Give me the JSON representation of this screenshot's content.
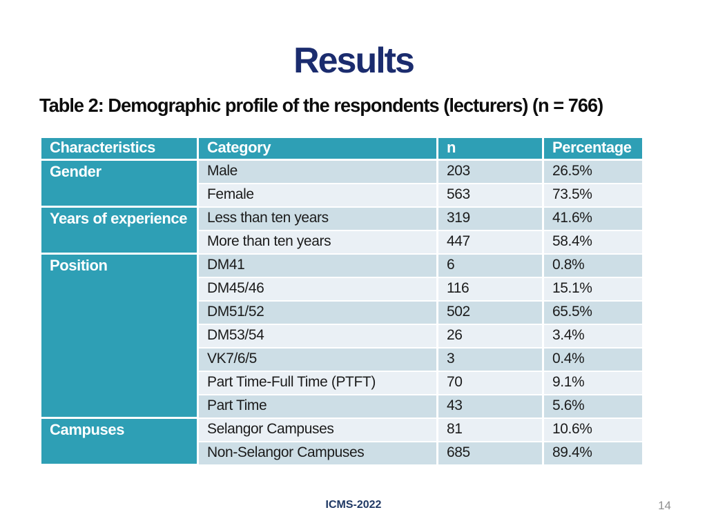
{
  "title": "Results",
  "subtitle": "Table 2: Demographic profile of the respondents (lecturers) (n = 766)",
  "footer": {
    "label": "ICMS-2022",
    "page_number": "14"
  },
  "colors": {
    "accent_teal": "#2E9FB5",
    "row_dark": "#CDDEE6",
    "row_light": "#EAF0F5",
    "title_navy": "#1B2C6E",
    "footer_navy": "#1F3864",
    "page_gray": "#8F8F8F",
    "header_text": "#FFFFFF",
    "body_text": "#1B1B1B"
  },
  "table": {
    "headers": [
      "Characteristics",
      "Category",
      "n",
      "Percentage"
    ],
    "groups": [
      {
        "label": "Gender",
        "rows": [
          {
            "category": "Male",
            "n": "203",
            "percentage": "26.5%"
          },
          {
            "category": "Female",
            "n": "563",
            "percentage": "73.5%"
          }
        ]
      },
      {
        "label": "Years of experience",
        "rows": [
          {
            "category": "Less than ten years",
            "n": "319",
            "percentage": "41.6%"
          },
          {
            "category": "More than ten years",
            "n": "447",
            "percentage": "58.4%"
          }
        ]
      },
      {
        "label": "Position",
        "rows": [
          {
            "category": "DM41",
            "n": "6",
            "percentage": "0.8%"
          },
          {
            "category": "DM45/46",
            "n": "116",
            "percentage": "15.1%"
          },
          {
            "category": "DM51/52",
            "n": "502",
            "percentage": "65.5%"
          },
          {
            "category": "DM53/54",
            "n": "26",
            "percentage": "3.4%"
          },
          {
            "category": "VK7/6/5",
            "n": "3",
            "percentage": "0.4%"
          },
          {
            "category": "Part Time-Full Time (PTFT)",
            "n": "70",
            "percentage": "9.1%"
          },
          {
            "category": "Part Time",
            "n": "43",
            "percentage": "5.6%"
          }
        ]
      },
      {
        "label": "Campuses",
        "rows": [
          {
            "category": "Selangor Campuses",
            "n": "81",
            "percentage": "10.6%"
          },
          {
            "category": "Non-Selangor Campuses",
            "n": "685",
            "percentage": "89.4%"
          }
        ]
      }
    ]
  }
}
